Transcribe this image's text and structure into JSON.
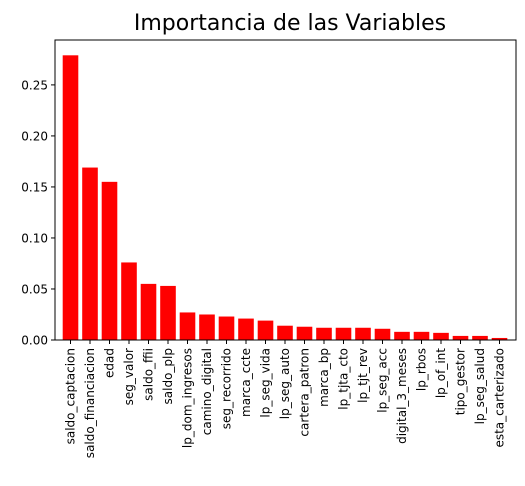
{
  "chart_data": {
    "type": "bar",
    "title": "Importancia de las Variables",
    "xlabel": "",
    "ylabel": "",
    "ylim": [
      0,
      0.294
    ],
    "yticks": [
      "0.00",
      "0.05",
      "0.10",
      "0.15",
      "0.20",
      "0.25"
    ],
    "grid": false,
    "legend": "none",
    "bar_color": "#ff0000",
    "categories": [
      "saldo_captacion",
      "saldo_financiacion",
      "edad",
      "seg_valor",
      "saldo_ffii",
      "saldo_plp",
      "lp_dom_ingresos",
      "camino_digital",
      "seg_recorrido",
      "marca_ccte",
      "lp_seg_vida",
      "lp_seg_auto",
      "cartera_patron",
      "marca_bp",
      "lp_tjta_cto",
      "lp_tjt_rev",
      "lp_seg_acc",
      "digital_3_meses",
      "lp_rbos",
      "lp_of_int",
      "tipo_gestor",
      "lp_seg_salud",
      "esta_carterizado"
    ],
    "values": [
      0.279,
      0.169,
      0.155,
      0.076,
      0.055,
      0.053,
      0.027,
      0.025,
      0.023,
      0.021,
      0.019,
      0.014,
      0.013,
      0.012,
      0.012,
      0.012,
      0.011,
      0.008,
      0.008,
      0.007,
      0.004,
      0.004,
      0.002
    ]
  }
}
